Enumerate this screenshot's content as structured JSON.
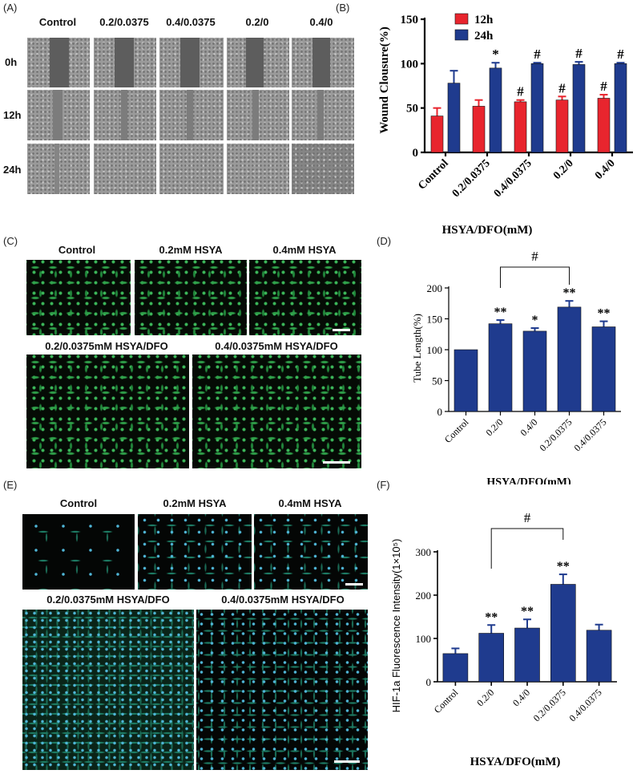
{
  "panel_labels": {
    "A": "(A)",
    "B": "(B)",
    "C": "(C)",
    "D": "(D)",
    "E": "(E)",
    "F": "(F)"
  },
  "panel_a": {
    "columns": [
      "Control",
      "0.2/0.0375",
      "0.4/0.0375",
      "0.2/0",
      "0.4/0"
    ],
    "rows": [
      "0h",
      "12h",
      "24h"
    ]
  },
  "panel_c": {
    "top_labels": [
      "Control",
      "0.2mM HSYA",
      "0.4mM HSYA"
    ],
    "bottom_labels": [
      "0.2/0.0375mM HSYA/DFO",
      "0.4/0.0375mM HSYA/DFO"
    ]
  },
  "panel_e": {
    "top_labels": [
      "Control",
      "0.2mM HSYA",
      "0.4mM HSYA"
    ],
    "bottom_labels": [
      "0.2/0.0375mM HSYA/DFO",
      "0.4/0.0375mM HSYA/DFO"
    ]
  },
  "colors": {
    "red": "#e8252e",
    "blue": "#1f3b8e",
    "axis": "#000000"
  },
  "chart_data": [
    {
      "id": "B",
      "type": "bar",
      "categories": [
        "Control",
        "0.2/0.0375",
        "0.4/0.0375",
        "0.2/0",
        "0.4/0"
      ],
      "series": [
        {
          "name": "12h",
          "color": "#e8252e",
          "values": [
            41,
            52,
            57,
            59,
            61
          ],
          "errors": [
            9,
            7,
            2,
            4,
            4
          ],
          "annotations": [
            "",
            "",
            "#",
            "#",
            "#"
          ]
        },
        {
          "name": "24h",
          "color": "#1f3b8e",
          "values": [
            78,
            95,
            100,
            99,
            100
          ],
          "errors": [
            14,
            6,
            1,
            3,
            1
          ],
          "annotations": [
            "",
            "*",
            "#",
            "#",
            "#"
          ]
        }
      ],
      "title": "",
      "xlabel": "HSYA/DFO(mM)",
      "ylabel": "Wound Clousure(%)",
      "ylim": [
        0,
        150
      ],
      "yticks": [
        0,
        50,
        100,
        150
      ],
      "legend": "top-left"
    },
    {
      "id": "D",
      "type": "bar",
      "categories": [
        "Control",
        "0.2/0",
        "0.4/0",
        "0.2/0.0375",
        "0.4/0.0375"
      ],
      "series": [
        {
          "name": "",
          "color": "#1f3b8e",
          "values": [
            100,
            142,
            130,
            169,
            137
          ],
          "errors": [
            0,
            6,
            5,
            10,
            9
          ],
          "annotations": [
            "",
            "**",
            "*",
            "**",
            "**"
          ]
        }
      ],
      "bracket": {
        "from": 1,
        "to": 3,
        "label": "#"
      },
      "title": "",
      "xlabel": "HSYA/DFO(mM)",
      "ylabel": "Tube Length(%)",
      "ylim": [
        0,
        200
      ],
      "yticks": [
        0,
        50,
        100,
        150,
        200
      ],
      "legend": "none"
    },
    {
      "id": "F",
      "type": "bar",
      "categories": [
        "Control",
        "0.2/0",
        "0.4/0",
        "0.2/0.0375",
        "0.4/0.0375"
      ],
      "series": [
        {
          "name": "",
          "color": "#1f3b8e",
          "values": [
            65,
            112,
            124,
            225,
            119
          ],
          "errors": [
            12,
            19,
            20,
            23,
            13
          ],
          "annotations": [
            "",
            "**",
            "**",
            "**",
            ""
          ]
        }
      ],
      "bracket": {
        "from": 1,
        "to": 3,
        "label": "#"
      },
      "title": "",
      "xlabel": "HSYA/DFO(mM)",
      "ylabel": "HIF-1a Fluorescence Intensity(1×10⁵)",
      "ylim": [
        0,
        300
      ],
      "yticks": [
        0,
        100,
        200,
        300
      ],
      "legend": "none"
    }
  ]
}
